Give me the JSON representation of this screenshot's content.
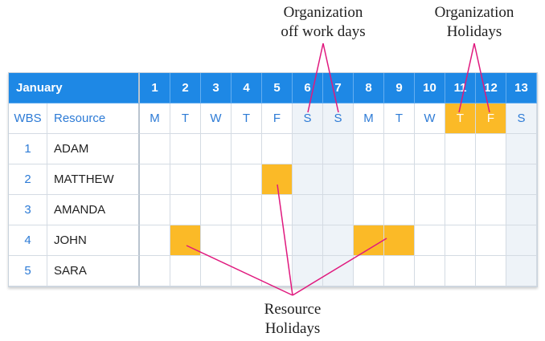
{
  "annotations": {
    "offwork": [
      "Organization",
      "off work days"
    ],
    "orgholidays": [
      "Organization",
      "Holidays"
    ],
    "resource": [
      "Resource",
      "Holidays"
    ]
  },
  "table": {
    "month": "January",
    "wbs_label": "WBS",
    "resource_label": "Resource",
    "dates": [
      "1",
      "2",
      "3",
      "4",
      "5",
      "6",
      "7",
      "8",
      "9",
      "10",
      "11",
      "12",
      "13"
    ],
    "weekdays": [
      "M",
      "T",
      "W",
      "T",
      "F",
      "S",
      "S",
      "M",
      "T",
      "W",
      "T",
      "F",
      "S"
    ],
    "rows": [
      {
        "wbs": "1",
        "name": "ADAM"
      },
      {
        "wbs": "2",
        "name": "MATTHEW"
      },
      {
        "wbs": "3",
        "name": "AMANDA"
      },
      {
        "wbs": "4",
        "name": "JOHN"
      },
      {
        "wbs": "5",
        "name": "SARA"
      }
    ]
  },
  "calendar": {
    "weekend_days": [
      6,
      7,
      13
    ],
    "org_holiday_days": [
      11,
      12
    ],
    "resource_holidays": [
      {
        "row": 2,
        "day": 5
      },
      {
        "row": 4,
        "day": 2
      },
      {
        "row": 4,
        "day": 8
      },
      {
        "row": 4,
        "day": 9
      }
    ],
    "colors": {
      "header": "#1e88e5",
      "holiday": "#fbba27",
      "weekend": "#eef3f8",
      "leader": "#e0197e",
      "label_blue": "#2d7bd6"
    }
  }
}
